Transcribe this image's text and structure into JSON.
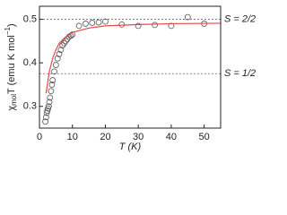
{
  "chart_data": {
    "type": "scatter",
    "x_label": "T (K)",
    "y_label": [
      "χ",
      "mol",
      "T (emu K mol",
      "−1",
      ")"
    ],
    "xlim": [
      0,
      55
    ],
    "xticks": [
      0,
      10,
      20,
      30,
      40,
      50
    ],
    "ylim": [
      0.25,
      0.53
    ],
    "yticks": [
      0.3,
      0.4,
      0.5
    ],
    "series": [
      {
        "name": "data",
        "color": "#555555",
        "x": [
          1.8,
          2.0,
          2.2,
          2.4,
          2.6,
          2.8,
          3.0,
          3.2,
          3.5,
          3.8,
          4.0,
          4.5,
          5.0,
          5.5,
          6.0,
          6.5,
          7.0,
          7.5,
          8.0,
          8.5,
          9.0,
          9.5,
          10,
          12,
          14,
          16,
          18,
          20,
          25,
          30,
          35,
          40,
          45,
          50
        ],
        "values": [
          0.265,
          0.275,
          0.285,
          0.29,
          0.295,
          0.3,
          0.31,
          0.32,
          0.335,
          0.35,
          0.36,
          0.38,
          0.395,
          0.41,
          0.42,
          0.43,
          0.44,
          0.445,
          0.45,
          0.455,
          0.46,
          0.462,
          0.465,
          0.485,
          0.49,
          0.492,
          0.493,
          0.495,
          0.488,
          0.485,
          0.487,
          0.485,
          0.505,
          0.49
        ]
      },
      {
        "name": "fit",
        "color": "#e8474c",
        "x": [
          2,
          3,
          4,
          5,
          6,
          8,
          10,
          15,
          20,
          30,
          40,
          55
        ],
        "values": [
          0.33,
          0.38,
          0.41,
          0.43,
          0.445,
          0.46,
          0.47,
          0.48,
          0.485,
          0.488,
          0.49,
          0.491
        ]
      }
    ],
    "reference_lines": [
      {
        "value": 0.5,
        "label": "S = 2/2"
      },
      {
        "value": 0.375,
        "label": "S = 1/2"
      }
    ]
  }
}
